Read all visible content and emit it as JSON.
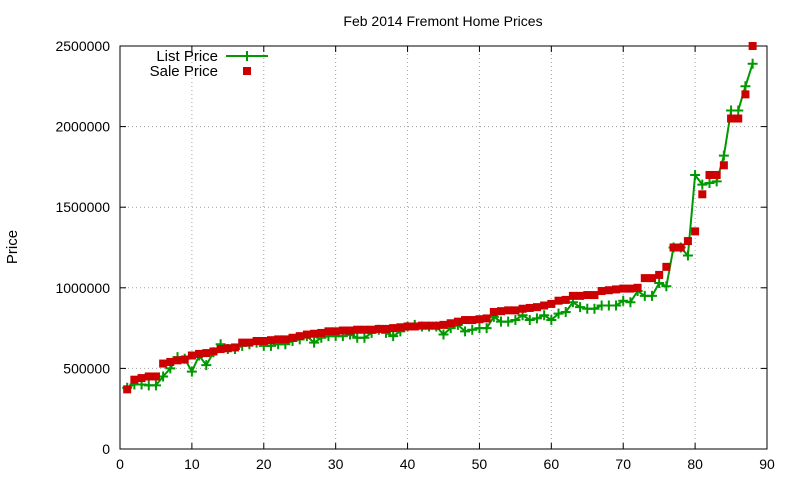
{
  "chart_data": {
    "type": "line",
    "title": "Feb 2014 Fremont Home Prices",
    "xlabel": "",
    "ylabel": "Price",
    "xlim": [
      0,
      90
    ],
    "ylim": [
      0,
      2500000
    ],
    "grid": true,
    "legend_position": "top-left",
    "x_ticks": [
      0,
      10,
      20,
      30,
      40,
      50,
      60,
      70,
      80,
      90
    ],
    "x_tick_labels": [
      "0",
      "10",
      "20",
      "30",
      "40",
      "50",
      "60",
      "70",
      "80",
      "90"
    ],
    "y_ticks": [
      0,
      500000,
      1000000,
      1500000,
      2000000,
      2500000
    ],
    "y_tick_labels": [
      "0",
      "500000",
      "1000000",
      "1500000",
      "2000000",
      "2500000"
    ],
    "series": [
      {
        "name": "List Price",
        "style": "linespoints",
        "color": "#009900",
        "marker": "plus",
        "x": [
          1,
          2,
          3,
          4,
          5,
          6,
          7,
          8,
          9,
          10,
          11,
          12,
          13,
          14,
          15,
          16,
          17,
          18,
          19,
          20,
          21,
          22,
          23,
          24,
          25,
          26,
          27,
          28,
          29,
          30,
          31,
          32,
          33,
          34,
          35,
          36,
          37,
          38,
          39,
          40,
          41,
          42,
          43,
          44,
          45,
          46,
          47,
          48,
          49,
          50,
          51,
          52,
          53,
          54,
          55,
          56,
          57,
          58,
          59,
          60,
          61,
          62,
          63,
          64,
          65,
          66,
          67,
          68,
          69,
          70,
          71,
          72,
          73,
          74,
          75,
          76,
          77,
          78,
          79,
          80,
          81,
          82,
          83,
          84,
          85,
          86,
          87,
          88
        ],
        "values": [
          380000,
          400000,
          400000,
          395000,
          395000,
          450000,
          500000,
          570000,
          560000,
          480000,
          580000,
          520000,
          600000,
          650000,
          620000,
          620000,
          640000,
          650000,
          660000,
          640000,
          640000,
          650000,
          650000,
          670000,
          680000,
          700000,
          660000,
          690000,
          700000,
          700000,
          700000,
          710000,
          690000,
          690000,
          720000,
          740000,
          720000,
          700000,
          730000,
          760000,
          770000,
          760000,
          760000,
          760000,
          710000,
          750000,
          770000,
          730000,
          740000,
          750000,
          750000,
          820000,
          790000,
          790000,
          800000,
          830000,
          800000,
          810000,
          830000,
          800000,
          840000,
          850000,
          910000,
          880000,
          870000,
          870000,
          890000,
          890000,
          890000,
          920000,
          910000,
          980000,
          950000,
          950000,
          1030000,
          1010000,
          1250000,
          1250000,
          1200000,
          1700000,
          1640000,
          1650000,
          1660000,
          1820000,
          2100000,
          2100000,
          2250000,
          2390000
        ]
      },
      {
        "name": "Sale Price",
        "style": "points",
        "color": "#cc0000",
        "marker": "square",
        "x": [
          1,
          2,
          3,
          4,
          5,
          6,
          7,
          8,
          9,
          10,
          11,
          12,
          13,
          14,
          15,
          16,
          17,
          18,
          19,
          20,
          21,
          22,
          23,
          24,
          25,
          26,
          27,
          28,
          29,
          30,
          31,
          32,
          33,
          34,
          35,
          36,
          37,
          38,
          39,
          40,
          41,
          42,
          43,
          44,
          45,
          46,
          47,
          48,
          49,
          50,
          51,
          52,
          53,
          54,
          55,
          56,
          57,
          58,
          59,
          60,
          61,
          62,
          63,
          64,
          65,
          66,
          67,
          68,
          69,
          70,
          71,
          72,
          73,
          74,
          75,
          76,
          77,
          78,
          79,
          80,
          81,
          82,
          83,
          84,
          85,
          86,
          87,
          88
        ],
        "values": [
          370000,
          430000,
          440000,
          450000,
          450000,
          530000,
          540000,
          550000,
          555000,
          580000,
          590000,
          595000,
          605000,
          620000,
          625000,
          630000,
          660000,
          660000,
          670000,
          670000,
          675000,
          680000,
          680000,
          690000,
          700000,
          710000,
          715000,
          720000,
          730000,
          730000,
          735000,
          735000,
          740000,
          740000,
          740000,
          745000,
          745000,
          750000,
          755000,
          760000,
          760000,
          765000,
          765000,
          765000,
          770000,
          780000,
          790000,
          800000,
          800000,
          805000,
          810000,
          850000,
          855000,
          860000,
          860000,
          870000,
          875000,
          880000,
          890000,
          900000,
          920000,
          925000,
          950000,
          950000,
          955000,
          955000,
          980000,
          985000,
          990000,
          995000,
          995000,
          1000000,
          1060000,
          1060000,
          1080000,
          1130000,
          1250000,
          1250000,
          1290000,
          1350000,
          1580000,
          1700000,
          1700000,
          1760000,
          2050000,
          2050000,
          2200000,
          2500000
        ]
      }
    ]
  }
}
